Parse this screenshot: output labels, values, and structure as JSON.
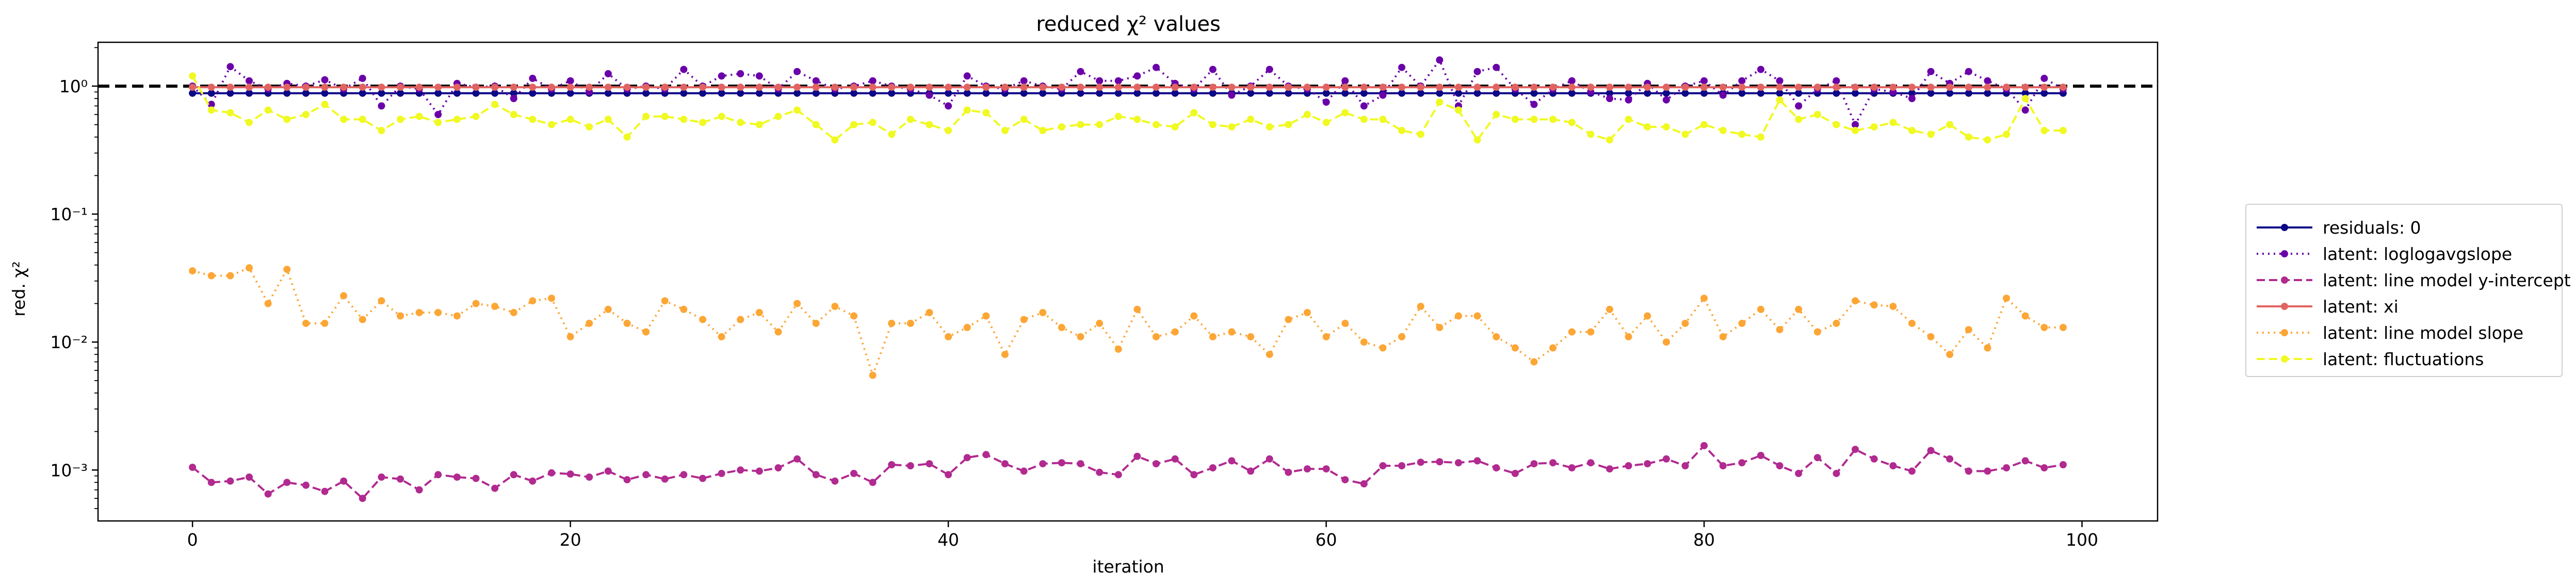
{
  "chart_data": {
    "type": "line",
    "title": "reduced χ² values",
    "xlabel": "iteration",
    "ylabel": "red. χ²",
    "xlim": [
      -5,
      104
    ],
    "ylim": [
      0.0004,
      2.2
    ],
    "yscale": "log",
    "x_ticks": [
      0,
      20,
      40,
      60,
      80,
      100
    ],
    "x_tick_labels": [
      "0",
      "20",
      "40",
      "60",
      "80",
      "100"
    ],
    "y_ticks": [
      0.001,
      0.01,
      0.1,
      1
    ],
    "y_tick_labels": [
      "10⁻³",
      "10⁻²",
      "10⁻¹",
      "10⁰"
    ],
    "reference_line": {
      "y": 1.0,
      "style": "dashed",
      "color": "#000000"
    },
    "grid": false,
    "legend_position": "outside-right",
    "x": [
      0,
      1,
      2,
      3,
      4,
      5,
      6,
      7,
      8,
      9,
      10,
      11,
      12,
      13,
      14,
      15,
      16,
      17,
      18,
      19,
      20,
      21,
      22,
      23,
      24,
      25,
      26,
      27,
      28,
      29,
      30,
      31,
      32,
      33,
      34,
      35,
      36,
      37,
      38,
      39,
      40,
      41,
      42,
      43,
      44,
      45,
      46,
      47,
      48,
      49,
      50,
      51,
      52,
      53,
      54,
      55,
      56,
      57,
      58,
      59,
      60,
      61,
      62,
      63,
      64,
      65,
      66,
      67,
      68,
      69,
      70,
      71,
      72,
      73,
      74,
      75,
      76,
      77,
      78,
      79,
      80,
      81,
      82,
      83,
      84,
      85,
      86,
      87,
      88,
      89,
      90,
      91,
      92,
      93,
      94,
      95,
      96,
      97,
      98,
      99
    ],
    "series": [
      {
        "name": "residuals: 0",
        "color": "#0d0887",
        "linestyle": "solid",
        "values": [
          0.88,
          0.88,
          0.88,
          0.88,
          0.88,
          0.88,
          0.88,
          0.88,
          0.88,
          0.88,
          0.88,
          0.88,
          0.88,
          0.88,
          0.88,
          0.88,
          0.88,
          0.88,
          0.88,
          0.88,
          0.88,
          0.88,
          0.88,
          0.88,
          0.88,
          0.88,
          0.88,
          0.88,
          0.88,
          0.88,
          0.88,
          0.88,
          0.88,
          0.88,
          0.88,
          0.88,
          0.88,
          0.88,
          0.88,
          0.88,
          0.88,
          0.88,
          0.88,
          0.88,
          0.88,
          0.88,
          0.88,
          0.88,
          0.88,
          0.88,
          0.88,
          0.88,
          0.88,
          0.88,
          0.88,
          0.88,
          0.88,
          0.88,
          0.88,
          0.88,
          0.88,
          0.88,
          0.88,
          0.88,
          0.88,
          0.88,
          0.88,
          0.88,
          0.88,
          0.88,
          0.88,
          0.88,
          0.88,
          0.88,
          0.88,
          0.88,
          0.88,
          0.88,
          0.88,
          0.88,
          0.88,
          0.88,
          0.88,
          0.88,
          0.88,
          0.88,
          0.88,
          0.88,
          0.88,
          0.88,
          0.88,
          0.88,
          0.88,
          0.88,
          0.88,
          0.88,
          0.88,
          0.88,
          0.88,
          0.88
        ]
      },
      {
        "name": "latent: loglogavgslope",
        "color": "#6a00a8",
        "linestyle": "dotted",
        "values": [
          1.0,
          0.72,
          1.42,
          1.1,
          0.95,
          1.05,
          1.0,
          1.12,
          0.95,
          1.15,
          0.7,
          1.0,
          0.95,
          0.6,
          1.05,
          0.98,
          1.0,
          0.8,
          1.15,
          0.95,
          1.1,
          0.9,
          1.25,
          0.95,
          1.0,
          0.95,
          1.35,
          1.0,
          1.2,
          1.25,
          1.2,
          0.95,
          1.3,
          1.1,
          0.95,
          1.0,
          1.1,
          1.0,
          0.95,
          0.85,
          0.7,
          1.2,
          1.0,
          0.95,
          1.1,
          1.0,
          0.95,
          1.3,
          1.1,
          1.1,
          1.2,
          1.4,
          1.05,
          0.95,
          1.35,
          0.85,
          1.0,
          1.35,
          1.0,
          0.95,
          0.75,
          1.1,
          0.7,
          0.85,
          1.4,
          1.0,
          1.6,
          0.7,
          1.3,
          1.4,
          0.95,
          0.72,
          0.95,
          1.1,
          0.9,
          0.8,
          0.78,
          1.05,
          0.78,
          1.0,
          1.1,
          0.85,
          1.1,
          1.35,
          1.1,
          0.7,
          0.95,
          1.1,
          0.5,
          0.95,
          0.9,
          0.8,
          1.3,
          1.05,
          1.3,
          1.1,
          0.95,
          0.65,
          1.15,
          0.95
        ]
      },
      {
        "name": "latent: line model y-intercept",
        "color": "#b12a90",
        "linestyle": "dashed",
        "values": [
          0.00105,
          0.0008,
          0.00082,
          0.00088,
          0.00065,
          0.0008,
          0.00076,
          0.00068,
          0.00082,
          0.0006,
          0.00088,
          0.00085,
          0.0007,
          0.00092,
          0.00088,
          0.00086,
          0.00072,
          0.00092,
          0.00082,
          0.00095,
          0.00093,
          0.00088,
          0.00098,
          0.00084,
          0.00092,
          0.00085,
          0.00092,
          0.00086,
          0.00094,
          0.001,
          0.00098,
          0.00104,
          0.00122,
          0.00092,
          0.00082,
          0.00094,
          0.0008,
          0.0011,
          0.00108,
          0.00112,
          0.00092,
          0.00125,
          0.00132,
          0.00112,
          0.00098,
          0.00112,
          0.00114,
          0.00112,
          0.00096,
          0.00092,
          0.00128,
          0.00112,
          0.00122,
          0.00092,
          0.00104,
          0.00118,
          0.00098,
          0.00122,
          0.00096,
          0.00102,
          0.00102,
          0.00084,
          0.00078,
          0.00108,
          0.00108,
          0.00115,
          0.00116,
          0.00114,
          0.00118,
          0.00104,
          0.00094,
          0.00112,
          0.00114,
          0.00104,
          0.00114,
          0.00102,
          0.00108,
          0.00112,
          0.00122,
          0.00108,
          0.00155,
          0.00108,
          0.00114,
          0.0013,
          0.00108,
          0.00094,
          0.00125,
          0.00094,
          0.00145,
          0.00122,
          0.00108,
          0.00098,
          0.00142,
          0.00122,
          0.00098,
          0.00098,
          0.00104,
          0.00118,
          0.00104,
          0.0011
        ]
      },
      {
        "name": "latent: xi",
        "color": "#e16462",
        "linestyle": "solid",
        "values": [
          0.98,
          0.98,
          0.98,
          0.98,
          0.98,
          0.98,
          0.98,
          0.98,
          0.98,
          0.98,
          0.98,
          0.98,
          0.98,
          0.98,
          0.98,
          0.98,
          0.98,
          0.98,
          0.98,
          0.98,
          0.98,
          0.98,
          0.98,
          0.98,
          0.98,
          0.98,
          0.98,
          0.98,
          0.98,
          0.98,
          0.98,
          0.98,
          0.98,
          0.98,
          0.98,
          0.98,
          0.98,
          0.98,
          0.98,
          0.98,
          0.98,
          0.98,
          0.98,
          0.98,
          0.98,
          0.98,
          0.98,
          0.98,
          0.98,
          0.98,
          0.98,
          0.98,
          0.98,
          0.98,
          0.98,
          0.98,
          0.98,
          0.98,
          0.98,
          0.98,
          0.98,
          0.98,
          0.98,
          0.98,
          0.98,
          0.98,
          0.98,
          0.98,
          0.98,
          0.98,
          0.98,
          0.98,
          0.98,
          0.98,
          0.98,
          0.98,
          0.98,
          0.98,
          0.98,
          0.98,
          0.98,
          0.98,
          0.98,
          0.98,
          0.98,
          0.98,
          0.98,
          0.98,
          0.98,
          0.98,
          0.98,
          0.98,
          0.98,
          0.98,
          0.98,
          0.98,
          0.98,
          0.98,
          0.98,
          0.98
        ]
      },
      {
        "name": "latent: line model slope",
        "color": "#fca636",
        "linestyle": "dotted",
        "values": [
          0.036,
          0.033,
          0.033,
          0.038,
          0.02,
          0.037,
          0.014,
          0.014,
          0.023,
          0.015,
          0.021,
          0.016,
          0.017,
          0.017,
          0.016,
          0.02,
          0.019,
          0.017,
          0.021,
          0.022,
          0.011,
          0.014,
          0.018,
          0.014,
          0.012,
          0.021,
          0.018,
          0.015,
          0.011,
          0.015,
          0.017,
          0.012,
          0.02,
          0.014,
          0.019,
          0.016,
          0.0055,
          0.014,
          0.014,
          0.017,
          0.011,
          0.013,
          0.016,
          0.008,
          0.015,
          0.017,
          0.013,
          0.011,
          0.014,
          0.0088,
          0.018,
          0.011,
          0.012,
          0.016,
          0.011,
          0.012,
          0.011,
          0.008,
          0.015,
          0.017,
          0.011,
          0.014,
          0.01,
          0.009,
          0.011,
          0.019,
          0.013,
          0.016,
          0.016,
          0.011,
          0.009,
          0.007,
          0.009,
          0.012,
          0.012,
          0.018,
          0.011,
          0.016,
          0.01,
          0.014,
          0.022,
          0.011,
          0.014,
          0.018,
          0.0125,
          0.018,
          0.012,
          0.014,
          0.021,
          0.0195,
          0.019,
          0.014,
          0.011,
          0.008,
          0.0125,
          0.009,
          0.022,
          0.016,
          0.013,
          0.013
        ]
      },
      {
        "name": "latent: fluctuations",
        "color": "#f0f921",
        "linestyle": "dashed",
        "values": [
          1.2,
          0.65,
          0.62,
          0.52,
          0.65,
          0.55,
          0.6,
          0.72,
          0.55,
          0.55,
          0.45,
          0.55,
          0.58,
          0.52,
          0.55,
          0.58,
          0.72,
          0.6,
          0.55,
          0.5,
          0.55,
          0.48,
          0.55,
          0.4,
          0.58,
          0.58,
          0.55,
          0.52,
          0.58,
          0.52,
          0.5,
          0.58,
          0.65,
          0.5,
          0.38,
          0.5,
          0.52,
          0.42,
          0.55,
          0.5,
          0.45,
          0.65,
          0.62,
          0.45,
          0.55,
          0.45,
          0.48,
          0.5,
          0.5,
          0.58,
          0.55,
          0.5,
          0.48,
          0.62,
          0.5,
          0.48,
          0.55,
          0.48,
          0.5,
          0.6,
          0.52,
          0.62,
          0.55,
          0.55,
          0.45,
          0.42,
          0.75,
          0.65,
          0.38,
          0.6,
          0.55,
          0.55,
          0.55,
          0.52,
          0.42,
          0.38,
          0.55,
          0.48,
          0.48,
          0.42,
          0.5,
          0.45,
          0.42,
          0.4,
          0.78,
          0.55,
          0.6,
          0.5,
          0.45,
          0.48,
          0.52,
          0.45,
          0.42,
          0.5,
          0.4,
          0.38,
          0.42,
          0.8,
          0.45,
          0.45
        ]
      }
    ]
  }
}
